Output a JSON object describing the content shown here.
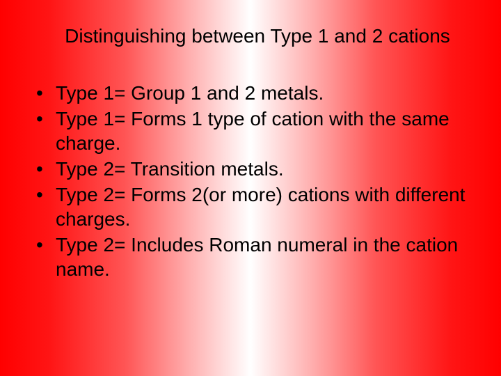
{
  "slide": {
    "title": "Distinguishing between Type 1 and 2 cations",
    "bullets": [
      "Type 1= Group 1 and 2 metals.",
      "Type 1= Forms 1 type of cation with the same charge.",
      "Type 2= Transition metals.",
      "Type 2= Forms 2(or more) cations with different charges.",
      "Type 2= Includes Roman numeral in the cation name."
    ],
    "background_gradient": {
      "direction": "horizontal",
      "stops": [
        "#ff0000",
        "#ffffff",
        "#ff0000"
      ]
    },
    "title_fontsize": 28,
    "body_fontsize": 28,
    "text_color": "#000000"
  }
}
